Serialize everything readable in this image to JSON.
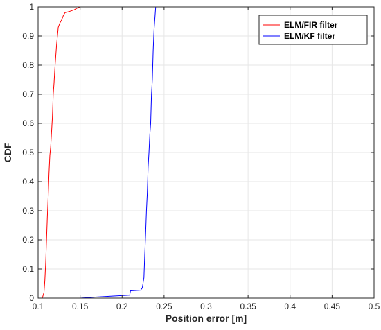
{
  "chart_data": {
    "type": "line",
    "xlabel": "Position error [m]",
    "ylabel": "CDF",
    "xlim": [
      0.1,
      0.5
    ],
    "ylim": [
      0,
      1
    ],
    "xticks": [
      "0.1",
      "0.15",
      "0.2",
      "0.25",
      "0.3",
      "0.35",
      "0.4",
      "0.45",
      "0.5"
    ],
    "yticks": [
      "0",
      "0.1",
      "0.2",
      "0.3",
      "0.4",
      "0.5",
      "0.6",
      "0.7",
      "0.8",
      "0.9",
      "1"
    ],
    "grid": true,
    "legend_position": "top-right",
    "series": [
      {
        "name": "ELM/FIR filter",
        "color": "#ff0000",
        "points": [
          [
            0.105,
            0.0
          ],
          [
            0.107,
            0.02
          ],
          [
            0.108,
            0.06
          ],
          [
            0.109,
            0.12
          ],
          [
            0.11,
            0.2
          ],
          [
            0.111,
            0.28
          ],
          [
            0.112,
            0.35
          ],
          [
            0.113,
            0.43
          ],
          [
            0.114,
            0.49
          ],
          [
            0.115,
            0.52
          ],
          [
            0.116,
            0.57
          ],
          [
            0.117,
            0.62
          ],
          [
            0.118,
            0.7
          ],
          [
            0.119,
            0.74
          ],
          [
            0.12,
            0.79
          ],
          [
            0.121,
            0.83
          ],
          [
            0.122,
            0.87
          ],
          [
            0.123,
            0.9
          ],
          [
            0.124,
            0.93
          ],
          [
            0.126,
            0.945
          ],
          [
            0.128,
            0.955
          ],
          [
            0.13,
            0.97
          ],
          [
            0.132,
            0.98
          ],
          [
            0.138,
            0.985
          ],
          [
            0.143,
            0.99
          ],
          [
            0.146,
            0.995
          ],
          [
            0.15,
            1.0
          ],
          [
            0.24,
            1.0
          ]
        ]
      },
      {
        "name": "ELM/KF filter",
        "color": "#0000ff",
        "points": [
          [
            0.15,
            0.0
          ],
          [
            0.17,
            0.004
          ],
          [
            0.19,
            0.007
          ],
          [
            0.209,
            0.01
          ],
          [
            0.21,
            0.025
          ],
          [
            0.222,
            0.027
          ],
          [
            0.224,
            0.035
          ],
          [
            0.226,
            0.07
          ],
          [
            0.227,
            0.15
          ],
          [
            0.228,
            0.22
          ],
          [
            0.229,
            0.3
          ],
          [
            0.23,
            0.36
          ],
          [
            0.231,
            0.45
          ],
          [
            0.232,
            0.5
          ],
          [
            0.233,
            0.56
          ],
          [
            0.234,
            0.6
          ],
          [
            0.235,
            0.7
          ],
          [
            0.236,
            0.75
          ],
          [
            0.237,
            0.85
          ],
          [
            0.238,
            0.92
          ],
          [
            0.239,
            0.96
          ],
          [
            0.24,
            1.0
          ],
          [
            0.468,
            1.0
          ]
        ]
      }
    ]
  }
}
